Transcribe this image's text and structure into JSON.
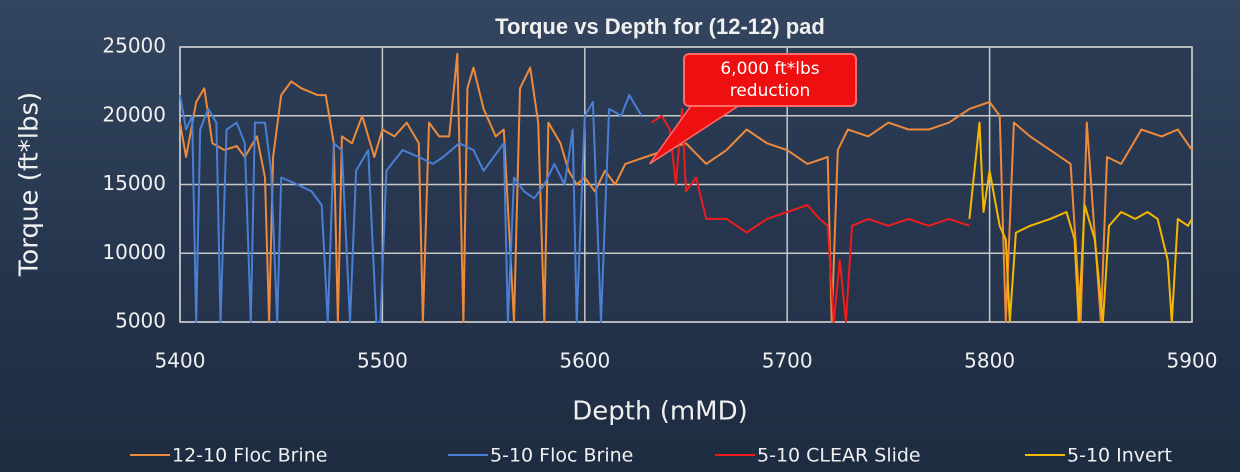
{
  "chart_data": {
    "type": "line",
    "title": "Torque vs Depth for (12-12) pad",
    "xlabel": "Depth (mMD)",
    "ylabel": "Torque (ft*lbs)",
    "xlim": [
      5400,
      5900
    ],
    "xticks": [
      5400,
      5500,
      5600,
      5700,
      5800,
      5900
    ],
    "ylim": [
      5000,
      25000
    ],
    "yticks": [
      5000,
      10000,
      15000,
      20000,
      25000
    ],
    "grid": true,
    "legend": "bottom",
    "annotation": {
      "text": "6,000 ft*lbs reduction",
      "x": 5632,
      "y": 16500
    },
    "series": [
      {
        "name": "12-10 Floc Brine",
        "color": "#ee8a3c",
        "x": [
          5400,
          5403,
          5408,
          5412,
          5416,
          5422,
          5428,
          5432,
          5438,
          5442,
          5444,
          5446,
          5450,
          5455,
          5460,
          5468,
          5472,
          5476,
          5478,
          5480,
          5485,
          5490,
          5496,
          5500,
          5506,
          5512,
          5518,
          5520,
          5523,
          5528,
          5533,
          5537,
          5540,
          5542,
          5545,
          5550,
          5556,
          5560,
          5565,
          5568,
          5573,
          5577,
          5580,
          5582,
          5588,
          5592,
          5596,
          5600,
          5605,
          5610,
          5615,
          5620,
          5630,
          5640,
          5650,
          5660,
          5670,
          5680,
          5690,
          5700,
          5710,
          5720,
          5722,
          5725,
          5730,
          5740,
          5750,
          5760,
          5770,
          5780,
          5790,
          5800,
          5805,
          5808,
          5812,
          5820,
          5830,
          5840,
          5845,
          5848,
          5855,
          5858,
          5865,
          5875,
          5885,
          5893,
          5900
        ],
        "values": [
          19500,
          17000,
          21000,
          22000,
          18000,
          17500,
          17800,
          17000,
          18500,
          15500,
          5000,
          17000,
          21500,
          22500,
          22000,
          21500,
          21500,
          18000,
          5000,
          18500,
          18000,
          20000,
          17000,
          19000,
          18500,
          19500,
          18000,
          5000,
          19500,
          18500,
          18500,
          24500,
          5000,
          22000,
          23500,
          20500,
          18500,
          19000,
          5000,
          22000,
          23500,
          19500,
          5000,
          19500,
          18000,
          16000,
          15000,
          15500,
          14500,
          16000,
          15000,
          16500,
          17000,
          17500,
          18000,
          16500,
          17500,
          19000,
          18000,
          17500,
          16500,
          17000,
          5000,
          17500,
          19000,
          18500,
          19500,
          19000,
          19000,
          19500,
          20500,
          21000,
          20000,
          5000,
          19500,
          18500,
          17500,
          16500,
          5000,
          19500,
          5000,
          17000,
          16500,
          19000,
          18500,
          19000,
          17500
        ]
      },
      {
        "name": "5-10 Floc Brine",
        "color": "#4a7fd4",
        "x": [
          5400,
          5403,
          5406,
          5408,
          5410,
          5414,
          5418,
          5420,
          5423,
          5428,
          5432,
          5435,
          5437,
          5442,
          5445,
          5448,
          5450,
          5458,
          5465,
          5470,
          5473,
          5476,
          5480,
          5484,
          5487,
          5493,
          5497,
          5499,
          5502,
          5510,
          5518,
          5525,
          5530,
          5538,
          5545,
          5550,
          5555,
          5560,
          5562,
          5565,
          5570,
          5575,
          5580,
          5585,
          5590,
          5594,
          5596,
          5600,
          5604,
          5608,
          5612,
          5618,
          5622,
          5628
        ],
        "values": [
          21500,
          19000,
          20000,
          5000,
          19000,
          20500,
          19500,
          5000,
          19000,
          19500,
          18000,
          5000,
          19500,
          19500,
          16000,
          5000,
          15500,
          15000,
          14500,
          13500,
          5000,
          18000,
          17500,
          5000,
          16000,
          17500,
          5000,
          5000,
          16000,
          17500,
          17000,
          16500,
          17000,
          18000,
          17500,
          16000,
          17000,
          18000,
          5000,
          15500,
          14500,
          14000,
          15000,
          16500,
          15000,
          19000,
          5000,
          20000,
          21000,
          5000,
          20500,
          20000,
          21500,
          20000
        ]
      },
      {
        "name": "5-10 CLEAR Slide",
        "color": "#ee1c1c",
        "x": [
          5633,
          5638,
          5642,
          5645,
          5648,
          5650,
          5655,
          5660,
          5670,
          5680,
          5690,
          5700,
          5710,
          5716,
          5720,
          5723,
          5726,
          5729,
          5732,
          5740,
          5750,
          5760,
          5770,
          5780,
          5790
        ],
        "values": [
          19500,
          20000,
          19000,
          15000,
          20500,
          14500,
          15500,
          12500,
          12500,
          11500,
          12500,
          13000,
          13500,
          12500,
          12000,
          5000,
          9500,
          5000,
          12000,
          12500,
          12000,
          12500,
          12000,
          12500,
          12000
        ]
      },
      {
        "name": "5-10 Invert",
        "color": "#f5b800",
        "x": [
          5790,
          5795,
          5797,
          5800,
          5805,
          5808,
          5810,
          5813,
          5820,
          5830,
          5838,
          5842,
          5844,
          5847,
          5852,
          5856,
          5859,
          5865,
          5872,
          5878,
          5883,
          5888,
          5890,
          5893,
          5898,
          5900
        ],
        "values": [
          12500,
          19500,
          13000,
          16000,
          12000,
          11000,
          5000,
          11500,
          12000,
          12500,
          13000,
          11000,
          5000,
          13500,
          11000,
          5000,
          12000,
          13000,
          12500,
          13000,
          12500,
          9500,
          5000,
          12500,
          12000,
          12500
        ]
      }
    ]
  }
}
